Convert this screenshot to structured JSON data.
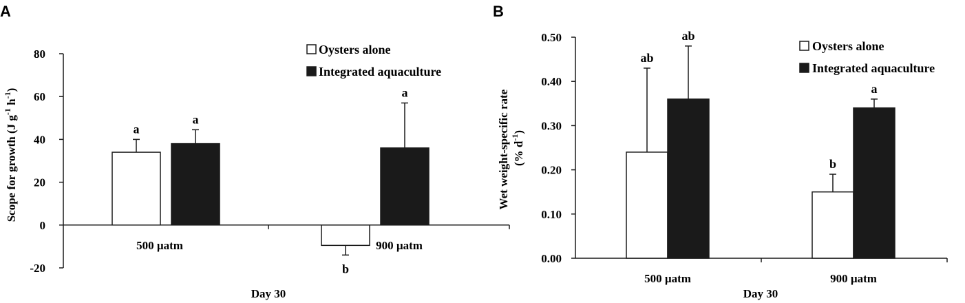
{
  "chart_data": [
    {
      "type": "bar",
      "panel": "A",
      "ylabel": "Scope for growth (J g-1 h-1)",
      "xlabel": "Day 30",
      "categories": [
        "500 µatm",
        "900 µatm"
      ],
      "ylim": [
        -20,
        80
      ],
      "yticks": [
        "80",
        "60",
        "40",
        "20",
        "0",
        "-20"
      ],
      "ytick_values": [
        80,
        60,
        40,
        20,
        0,
        -20
      ],
      "legend_position": "top-right",
      "series": [
        {
          "name": "Oysters alone",
          "color": "#ffffff",
          "values": [
            34,
            -9.5
          ],
          "errors": [
            6,
            4.5
          ],
          "labels": [
            "a",
            "b"
          ]
        },
        {
          "name": "Integrated aquaculture",
          "color": "#1a1a1a",
          "values": [
            38,
            36
          ],
          "errors": [
            6.5,
            21
          ],
          "labels": [
            "a",
            "a"
          ]
        }
      ]
    },
    {
      "type": "bar",
      "panel": "B",
      "ylabel": "Wet weight-specific rate (% d-1)",
      "xlabel": "Day 30",
      "categories": [
        "500 µatm",
        "900 µatm"
      ],
      "ylim": [
        0,
        0.5
      ],
      "yticks": [
        "0.50",
        "0.40",
        "0.30",
        "0.20",
        "0.10",
        "0.00"
      ],
      "ytick_values": [
        0.5,
        0.4,
        0.3,
        0.2,
        0.1,
        0
      ],
      "legend_position": "top-right",
      "series": [
        {
          "name": "Oysters alone",
          "color": "#ffffff",
          "values": [
            0.24,
            0.15
          ],
          "errors": [
            0.19,
            0.04
          ],
          "labels": [
            "ab",
            "b"
          ]
        },
        {
          "name": "Integrated aquaculture",
          "color": "#1a1a1a",
          "values": [
            0.36,
            0.34
          ],
          "errors": [
            0.12,
            0.02
          ],
          "labels": [
            "ab",
            "a"
          ]
        }
      ]
    }
  ]
}
